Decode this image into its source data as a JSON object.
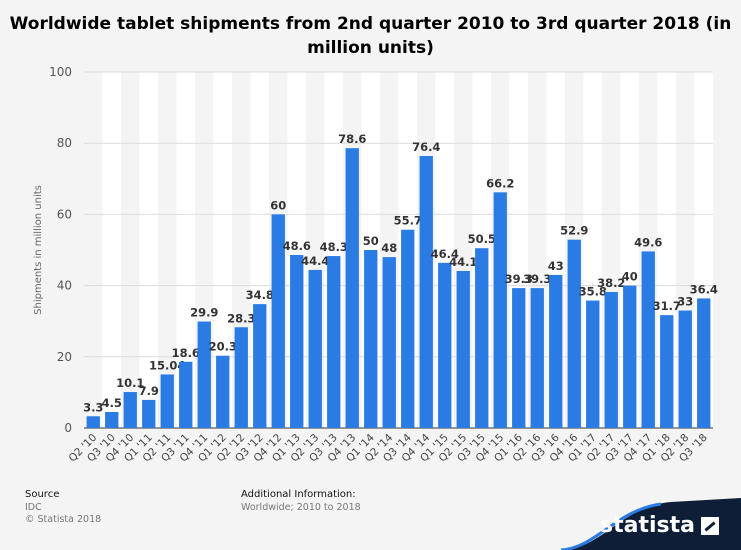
{
  "chart_data": {
    "type": "bar",
    "title": "Worldwide tablet shipments from 2nd quarter 2010 to 3rd quarter 2018 (in million units)",
    "xlabel": "",
    "ylabel": "Shipments in million units",
    "ylim": [
      0,
      100
    ],
    "yticks": [
      0,
      20,
      40,
      60,
      80,
      100
    ],
    "grid": true,
    "bar_color": "#2a7be4",
    "categories": [
      "Q2 '10",
      "Q3 '10",
      "Q4 '10",
      "Q1 '11",
      "Q2 '11",
      "Q3 '11",
      "Q4 '11",
      "Q1 '12",
      "Q2 '12",
      "Q3 '12",
      "Q4 '12",
      "Q1 '13",
      "Q2 '13",
      "Q3 '13",
      "Q4 '13",
      "Q1 '14",
      "Q2 '14",
      "Q3 '14",
      "Q4 '14",
      "Q1 '15",
      "Q2 '15",
      "Q3 '15",
      "Q4 '15",
      "Q1 '16",
      "Q2 '16",
      "Q3 '16",
      "Q4 '16",
      "Q1 '17",
      "Q2 '17",
      "Q3 '17",
      "Q4 '17",
      "Q1 '18",
      "Q2 '18",
      "Q3 '18"
    ],
    "values": [
      3.3,
      4.5,
      10.1,
      7.9,
      15.04,
      18.6,
      29.9,
      20.3,
      28.3,
      34.8,
      60,
      48.6,
      44.4,
      48.3,
      78.6,
      50,
      48,
      55.7,
      76.4,
      46.4,
      44.1,
      50.5,
      66.2,
      39.3,
      39.3,
      43,
      52.9,
      35.8,
      38.2,
      40,
      49.6,
      31.7,
      33,
      36.4
    ]
  },
  "footer": {
    "source_label": "Source",
    "source_value": "IDC",
    "copyright": "© Statista 2018",
    "additional_label": "Additional Information:",
    "additional_value": "Worldwide; 2010 to 2018"
  },
  "brand": {
    "name": "statista"
  }
}
